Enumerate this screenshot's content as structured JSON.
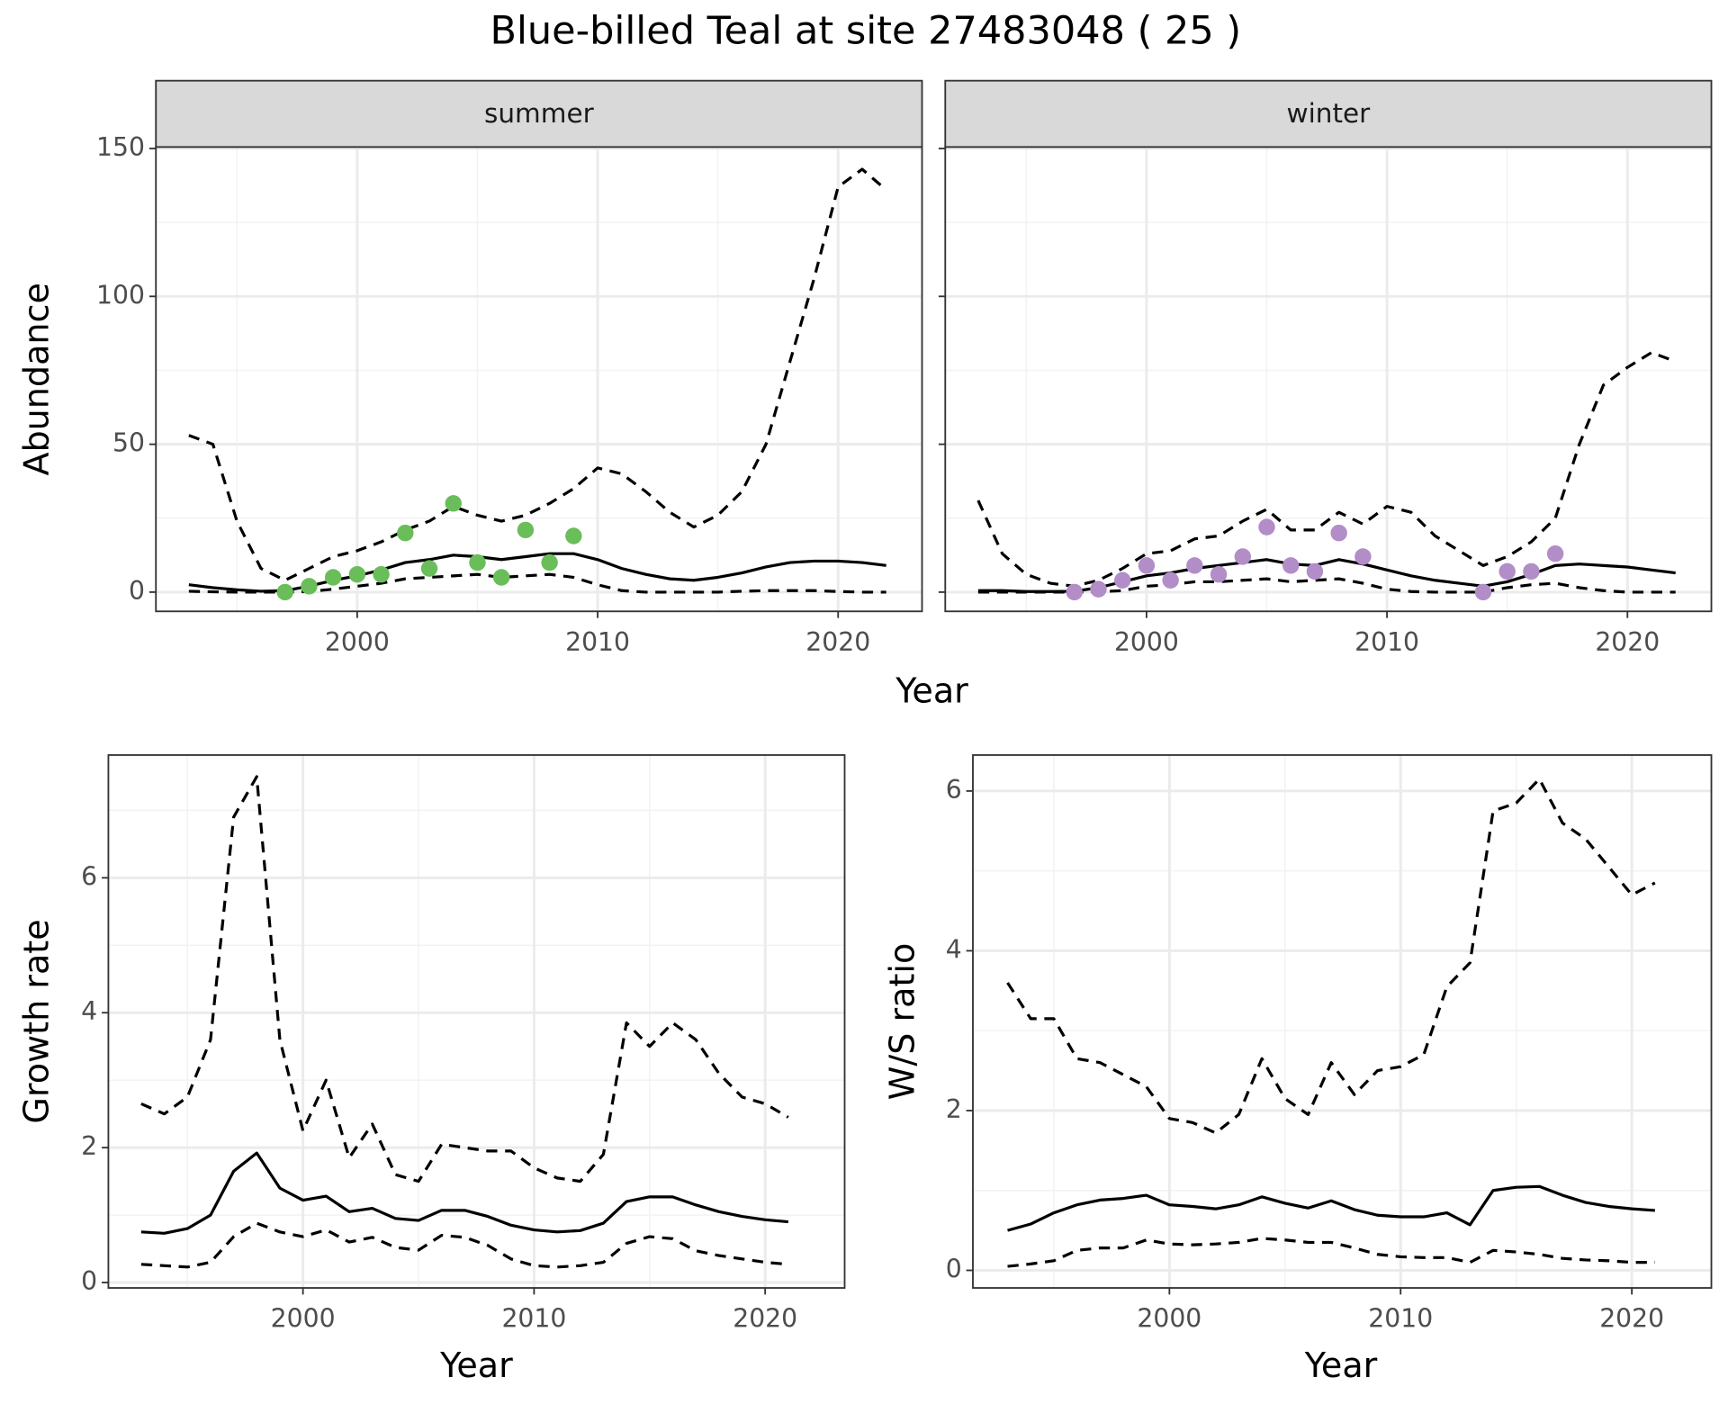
{
  "title": "Blue-billed Teal at site 27483048 ( 25 )",
  "chart_data": [
    {
      "type": "line",
      "facet": "summer",
      "xlabel": "Year",
      "ylabel": "Abundance",
      "show_ytick_labels": true,
      "xlim": [
        1991.63,
        2023.49
      ],
      "ylim": [
        -6.5,
        150.5
      ],
      "xticks": [
        2000,
        2010,
        2020
      ],
      "yticks": [
        0,
        50,
        100,
        150
      ],
      "minor_xticks": [
        1995,
        2005,
        2015
      ],
      "minor_yticks": [
        25,
        75,
        125
      ],
      "grid": true,
      "x": [
        1993,
        1994,
        1995,
        1996,
        1997,
        1998,
        1999,
        2000,
        2001,
        2002,
        2003,
        2004,
        2005,
        2006,
        2007,
        2008,
        2009,
        2010,
        2011,
        2012,
        2013,
        2014,
        2015,
        2016,
        2017,
        2018,
        2019,
        2020,
        2021,
        2022
      ],
      "series": [
        {
          "type": "line",
          "color": "#000000",
          "dash": "dashed",
          "values": [
            53,
            50,
            24,
            8,
            4,
            8,
            12,
            14,
            17,
            21,
            24,
            29,
            26,
            24,
            26,
            30,
            35,
            42,
            40,
            34,
            27,
            22,
            26,
            34,
            50,
            78,
            106,
            137,
            143,
            136
          ]
        },
        {
          "type": "line",
          "color": "#000000",
          "dash": "solid",
          "values": [
            2.5,
            1.5,
            0.8,
            0.3,
            0.5,
            2,
            4,
            5.5,
            7.5,
            10,
            11,
            12.5,
            12,
            11,
            12,
            13,
            13,
            11,
            8,
            6,
            4.5,
            4,
            5,
            6.5,
            8.5,
            10,
            10.5,
            10.5,
            10,
            9
          ]
        },
        {
          "type": "line",
          "color": "#000000",
          "dash": "dashed",
          "values": [
            0.3,
            0.1,
            0,
            0,
            0,
            0.2,
            1,
            2,
            3,
            4.5,
            5,
            5.5,
            6,
            5,
            5.5,
            6,
            5,
            2.5,
            0.5,
            0,
            0,
            0,
            0,
            0.3,
            0.5,
            0.5,
            0.5,
            0.2,
            0,
            0
          ]
        },
        {
          "type": "scatter",
          "color": "#6abe5a",
          "x": [
            1997,
            1998,
            1999,
            2000,
            2001,
            2002,
            2003,
            2004,
            2005,
            2006,
            2007,
            2008,
            2009
          ],
          "values": [
            0,
            2,
            5,
            6,
            6,
            20,
            8,
            30,
            10,
            5,
            21,
            10,
            19
          ]
        }
      ]
    },
    {
      "type": "line",
      "facet": "winter",
      "show_ytick_labels": false,
      "xlim": [
        1991.63,
        2023.49
      ],
      "ylim": [
        -6.5,
        150.5
      ],
      "xticks": [
        2000,
        2010,
        2020
      ],
      "yticks": [
        0,
        50,
        100,
        150
      ],
      "minor_xticks": [
        1995,
        2005,
        2015
      ],
      "minor_yticks": [
        25,
        75,
        125
      ],
      "grid": true,
      "x": [
        1993,
        1994,
        1995,
        1996,
        1997,
        1998,
        1999,
        2000,
        2001,
        2002,
        2003,
        2004,
        2005,
        2006,
        2007,
        2008,
        2009,
        2010,
        2011,
        2012,
        2013,
        2014,
        2015,
        2016,
        2017,
        2018,
        2019,
        2020,
        2021,
        2022
      ],
      "series": [
        {
          "type": "line",
          "color": "#000000",
          "dash": "dashed",
          "values": [
            31,
            13,
            6,
            3,
            2,
            4,
            8,
            13,
            14,
            18,
            19,
            24,
            28,
            21,
            21,
            27,
            23,
            29,
            27,
            19,
            14,
            9,
            12,
            17,
            25,
            50,
            70,
            76,
            81,
            78
          ]
        },
        {
          "type": "line",
          "color": "#000000",
          "dash": "solid",
          "values": [
            0.5,
            0.5,
            0.2,
            0.2,
            0.3,
            1.5,
            3.5,
            5.5,
            6.5,
            8,
            9,
            10,
            11,
            9.5,
            9,
            11,
            9.5,
            7.5,
            5.5,
            4,
            3,
            2,
            3.5,
            6,
            9,
            9.5,
            9,
            8.5,
            7.5,
            6.5
          ]
        },
        {
          "type": "line",
          "color": "#000000",
          "dash": "dashed",
          "values": [
            0,
            0,
            0,
            0,
            0,
            0.1,
            0.5,
            2,
            2.5,
            3.5,
            3.5,
            4,
            4.5,
            3.5,
            4,
            4.5,
            3,
            1,
            0.2,
            0,
            0,
            0,
            1.5,
            2.5,
            3,
            1.5,
            0.5,
            0,
            0,
            0
          ]
        },
        {
          "type": "scatter",
          "color": "#b28dc8",
          "x": [
            1997,
            1998,
            1999,
            2000,
            2001,
            2002,
            2003,
            2004,
            2005,
            2006,
            2007,
            2008,
            2009,
            2014,
            2015,
            2016,
            2017
          ],
          "values": [
            0,
            1,
            4,
            9,
            4,
            9,
            6,
            12,
            22,
            9,
            7,
            20,
            12,
            0,
            7,
            7,
            13
          ]
        }
      ]
    },
    {
      "type": "line",
      "xlabel": "Year",
      "ylabel": "Growth rate",
      "show_ytick_labels": true,
      "xlim": [
        1991.58,
        2023.44
      ],
      "ylim": [
        -0.08,
        7.82
      ],
      "xticks": [
        2000,
        2010,
        2020
      ],
      "yticks": [
        0,
        2,
        4,
        6
      ],
      "minor_xticks": [
        1995,
        2005,
        2015
      ],
      "minor_yticks": [
        1,
        3,
        5,
        7
      ],
      "grid": true,
      "x": [
        1993,
        1994,
        1995,
        1996,
        1997,
        1998,
        1999,
        2000,
        2001,
        2002,
        2003,
        2004,
        2005,
        2006,
        2007,
        2008,
        2009,
        2010,
        2011,
        2012,
        2013,
        2014,
        2015,
        2016,
        2017,
        2018,
        2019,
        2020,
        2021
      ],
      "series": [
        {
          "type": "line",
          "color": "#000000",
          "dash": "dashed",
          "values": [
            2.65,
            2.5,
            2.75,
            3.6,
            6.9,
            7.5,
            3.6,
            2.25,
            3.0,
            1.85,
            2.35,
            1.6,
            1.5,
            2.05,
            2.0,
            1.95,
            1.95,
            1.7,
            1.55,
            1.5,
            1.9,
            3.85,
            3.5,
            3.85,
            3.6,
            3.1,
            2.75,
            2.65,
            2.45
          ]
        },
        {
          "type": "line",
          "color": "#000000",
          "dash": "solid",
          "values": [
            0.75,
            0.73,
            0.8,
            1.0,
            1.65,
            1.92,
            1.4,
            1.22,
            1.28,
            1.05,
            1.1,
            0.95,
            0.92,
            1.07,
            1.07,
            0.98,
            0.85,
            0.78,
            0.75,
            0.77,
            0.88,
            1.2,
            1.27,
            1.27,
            1.15,
            1.05,
            0.98,
            0.93,
            0.9
          ]
        },
        {
          "type": "line",
          "color": "#000000",
          "dash": "dashed",
          "values": [
            0.27,
            0.25,
            0.23,
            0.3,
            0.68,
            0.88,
            0.75,
            0.68,
            0.78,
            0.6,
            0.67,
            0.52,
            0.48,
            0.7,
            0.67,
            0.55,
            0.35,
            0.25,
            0.23,
            0.25,
            0.3,
            0.58,
            0.68,
            0.65,
            0.47,
            0.4,
            0.35,
            0.3,
            0.27
          ]
        }
      ]
    },
    {
      "type": "line",
      "xlabel": "Year",
      "ylabel": "W/S ratio",
      "show_ytick_labels": true,
      "xlim": [
        1991.5,
        2023.44
      ],
      "ylim": [
        -0.22,
        6.45
      ],
      "xticks": [
        2000,
        2010,
        2020
      ],
      "yticks": [
        0,
        2,
        4,
        6
      ],
      "minor_xticks": [
        1995,
        2005,
        2015
      ],
      "minor_yticks": [
        1,
        3,
        5
      ],
      "grid": true,
      "x": [
        1993,
        1994,
        1995,
        1996,
        1997,
        1998,
        1999,
        2000,
        2001,
        2002,
        2003,
        2004,
        2005,
        2006,
        2007,
        2008,
        2009,
        2010,
        2011,
        2012,
        2013,
        2014,
        2015,
        2016,
        2017,
        2018,
        2019,
        2020,
        2021
      ],
      "series": [
        {
          "type": "line",
          "color": "#000000",
          "dash": "dashed",
          "values": [
            3.6,
            3.15,
            3.15,
            2.65,
            2.6,
            2.45,
            2.3,
            1.9,
            1.85,
            1.72,
            1.95,
            2.65,
            2.15,
            1.95,
            2.6,
            2.2,
            2.5,
            2.55,
            2.7,
            3.55,
            3.85,
            5.75,
            5.85,
            6.15,
            5.6,
            5.4,
            5.05,
            4.7,
            4.85
          ]
        },
        {
          "type": "line",
          "color": "#000000",
          "dash": "solid",
          "values": [
            0.5,
            0.58,
            0.72,
            0.82,
            0.88,
            0.9,
            0.94,
            0.82,
            0.8,
            0.77,
            0.82,
            0.92,
            0.84,
            0.78,
            0.87,
            0.76,
            0.69,
            0.67,
            0.67,
            0.72,
            0.57,
            1.0,
            1.04,
            1.05,
            0.94,
            0.85,
            0.8,
            0.77,
            0.75
          ]
        },
        {
          "type": "line",
          "color": "#000000",
          "dash": "dashed",
          "values": [
            0.05,
            0.08,
            0.12,
            0.25,
            0.28,
            0.28,
            0.38,
            0.33,
            0.32,
            0.33,
            0.35,
            0.4,
            0.38,
            0.35,
            0.35,
            0.28,
            0.2,
            0.17,
            0.16,
            0.16,
            0.1,
            0.25,
            0.23,
            0.2,
            0.15,
            0.13,
            0.12,
            0.1,
            0.1
          ]
        }
      ]
    }
  ]
}
